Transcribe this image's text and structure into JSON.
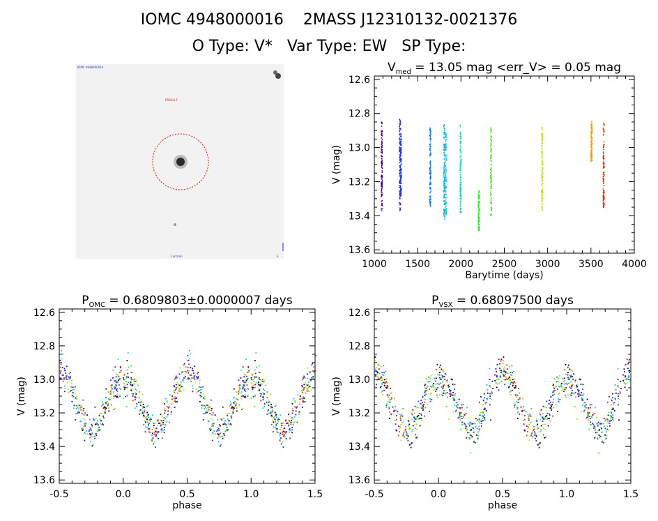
{
  "header": {
    "line1": "IOMC 4948000016    2MASS J12310132-0021376",
    "line2": "O Type: V*   Var Type: EW   SP Type:"
  },
  "image_panel": {
    "label_topleft": "IOMC 4948000016",
    "label_red": "POSS-II  F",
    "label_bottom": "1 arcmin",
    "north_arrow": "N",
    "east_label": "E"
  },
  "chart_data": [
    {
      "type": "scatter",
      "id": "lightcurve",
      "title_parts": [
        "V",
        "med",
        " = 13.05 mag <err_V> = 0.05 mag"
      ],
      "xlabel": "Barytime (days)",
      "ylabel": "V (mag)",
      "xlim": [
        1000,
        4000
      ],
      "ylim": [
        13.62,
        12.58
      ],
      "xticks": [
        "1000",
        "1500",
        "2000",
        "2500",
        "3000",
        "3500",
        "4000"
      ],
      "yticks": [
        "12.6",
        "12.8",
        "13.0",
        "13.2",
        "13.4",
        "13.6"
      ],
      "series": [
        {
          "x": 1080,
          "ymin": 12.84,
          "ymax": 13.37,
          "color": "#3a0080"
        },
        {
          "x": 1290,
          "ymin": 12.82,
          "ymax": 13.37,
          "color": "#2a1fc8"
        },
        {
          "x": 1300,
          "ymin": 12.88,
          "ymax": 13.28,
          "color": "#1f3cd8"
        },
        {
          "x": 1640,
          "ymin": 12.88,
          "ymax": 13.35,
          "color": "#1a6fd0"
        },
        {
          "x": 1800,
          "ymin": 12.86,
          "ymax": 13.42,
          "color": "#18a8d8"
        },
        {
          "x": 1820,
          "ymin": 12.9,
          "ymax": 13.4,
          "color": "#20c8c8"
        },
        {
          "x": 1990,
          "ymin": 12.86,
          "ymax": 13.38,
          "color": "#1fd0b0"
        },
        {
          "x": 2200,
          "ymin": 13.24,
          "ymax": 13.49,
          "color": "#40e040"
        },
        {
          "x": 2340,
          "ymin": 12.88,
          "ymax": 13.4,
          "color": "#50e030"
        },
        {
          "x": 2930,
          "ymin": 12.88,
          "ymax": 13.37,
          "color": "#b8e020"
        },
        {
          "x": 3500,
          "ymin": 12.84,
          "ymax": 13.08,
          "color": "#f0a000"
        },
        {
          "x": 3640,
          "ymin": 12.84,
          "ymax": 13.35,
          "color": "#e03000"
        }
      ]
    },
    {
      "type": "scatter",
      "id": "phase_omc",
      "title_parts": [
        "P",
        "OMC",
        " = 0.6809803±0.0000007 days"
      ],
      "period_days": 0.6809803,
      "xlabel": "phase",
      "ylabel": "V (mag)",
      "xlim": [
        -0.5,
        1.5
      ],
      "ylim": [
        13.62,
        12.58
      ],
      "xticks": [
        "-0.5",
        "0.0",
        "0.5",
        "1.0",
        "1.5"
      ],
      "yticks": [
        "12.6",
        "12.8",
        "13.0",
        "13.2",
        "13.4",
        "13.6"
      ],
      "curve": {
        "max_phase": 0.25,
        "min_phase": 0.5,
        "bright": 12.96,
        "faint": 13.3,
        "scatter": 0.05
      }
    },
    {
      "type": "scatter",
      "id": "phase_vsx",
      "title_parts": [
        "P",
        "VSX",
        " = 0.68097500 days"
      ],
      "period_days": 0.680975,
      "xlabel": "phase",
      "ylabel": "V (mag)",
      "xlim": [
        -0.5,
        1.5
      ],
      "ylim": [
        13.62,
        12.58
      ],
      "xticks": [
        "-0.5",
        "0.0",
        "0.5",
        "1.0",
        "1.5"
      ],
      "yticks": [
        "12.6",
        "12.8",
        "13.0",
        "13.2",
        "13.4",
        "13.6"
      ],
      "curve": {
        "max_phase": 0.25,
        "min_phase": 0.5,
        "bright": 12.96,
        "faint": 13.3,
        "scatter": 0.05
      }
    }
  ],
  "palette": [
    "#000000",
    "#2a1fc8",
    "#1f3cd8",
    "#18a8d8",
    "#20c8c8",
    "#40e040",
    "#b8e020",
    "#f0a000",
    "#e03000",
    "#3a0080"
  ]
}
